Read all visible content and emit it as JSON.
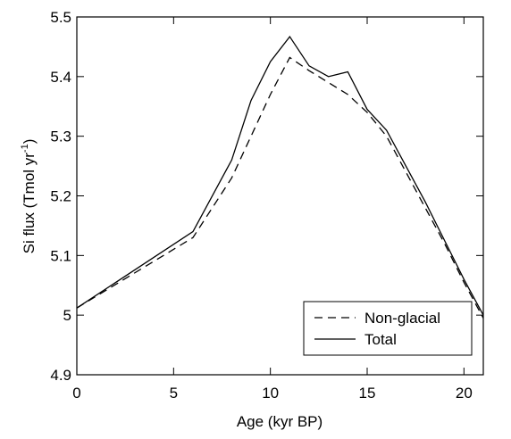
{
  "chart_data": {
    "type": "line",
    "xlabel": "Age (kyr BP)",
    "ylabel": [
      "Si flux (Tmol yr",
      "-1",
      ")"
    ],
    "x": [
      0,
      6,
      8,
      9,
      10,
      11,
      12,
      13,
      14,
      15,
      16,
      17,
      18,
      19,
      20,
      21
    ],
    "series": [
      {
        "name": "Non-glacial",
        "color": "#000000",
        "dash": "9,6",
        "values": [
          5.012,
          5.13,
          5.23,
          5.3,
          5.37,
          5.432,
          5.41,
          5.39,
          5.37,
          5.34,
          5.3,
          5.24,
          5.18,
          5.12,
          5.055,
          4.995
        ]
      },
      {
        "name": "Total",
        "color": "#000000",
        "dash": "none",
        "values": [
          5.012,
          5.14,
          5.26,
          5.36,
          5.425,
          5.467,
          5.418,
          5.4,
          5.408,
          5.345,
          5.31,
          5.25,
          5.19,
          5.125,
          5.06,
          5.0
        ]
      }
    ],
    "xlim": [
      0,
      21
    ],
    "xticks": [
      0,
      5,
      10,
      15,
      20
    ],
    "ylim": [
      4.9,
      5.5
    ],
    "yticks": [
      4.9,
      5,
      5.1,
      5.2,
      5.3,
      5.4,
      5.5
    ],
    "legend": "lower right"
  }
}
